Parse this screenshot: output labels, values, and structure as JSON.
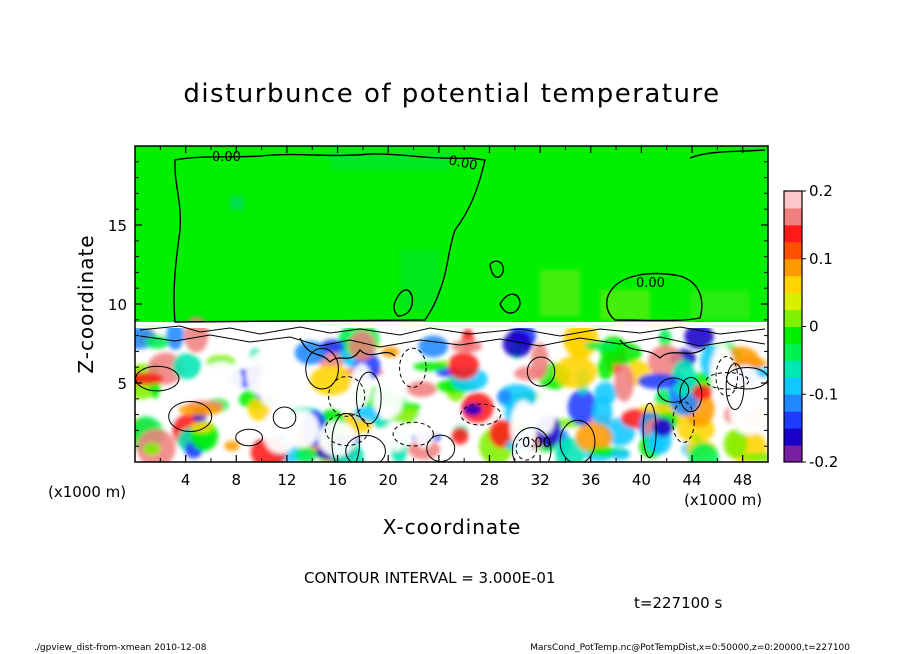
{
  "title": "disturbunce of potential temperature",
  "xlabel": "X-coordinate",
  "ylabel": "Z-coordinate",
  "x_unit_left": "(x1000 m)",
  "x_unit_right": "(x1000 m)",
  "contour_interval": "CONTOUR INTERVAL = 3.000E-01",
  "time_label": "t=227100 s",
  "footer_left": "./gpview_dist-from-xmean  2010-12-08",
  "footer_right": "MarsCond_PotTemp.nc@PotTempDist,x=0:50000,z=0:20000,t=227100",
  "chart_data": {
    "type": "heatmap",
    "title": "disturbunce of potential temperature",
    "xlabel": "X-coordinate",
    "ylabel": "Z-coordinate",
    "xlim": [
      0,
      50
    ],
    "ylim": [
      0,
      20
    ],
    "x_ticks": [
      "4",
      "8",
      "12",
      "16",
      "20",
      "24",
      "28",
      "32",
      "36",
      "40",
      "44",
      "48"
    ],
    "y_ticks": [
      "5",
      "10",
      "15"
    ],
    "colorbar": {
      "range": [
        -0.2,
        0.2
      ],
      "tick_labels": [
        "0.2",
        "0.1",
        "0",
        "-0.1",
        "-0.2"
      ],
      "colors": [
        "#7b1fa2",
        "#1a00c8",
        "#1e3cff",
        "#1e88ff",
        "#10c8ff",
        "#00e6b4",
        "#00f050",
        "#00f000",
        "#80f000",
        "#d8f000",
        "#ffd400",
        "#ff9a00",
        "#ff5000",
        "#ff1a1a",
        "#f08080",
        "#ffc8c8"
      ]
    },
    "contour_labels": [
      "0.00",
      "0.00",
      "0.00",
      "0.00"
    ],
    "contour_interval": 0.3,
    "upper_layer_value": 0.0,
    "boundary_z": 8.8
  },
  "colors": {
    "background": "#ffffff",
    "upper_field": "#00f000",
    "frame": "#000000"
  }
}
